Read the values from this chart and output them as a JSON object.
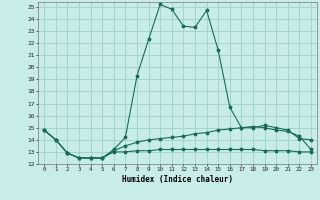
{
  "xlabel": "Humidex (Indice chaleur)",
  "background_color": "#c8ecea",
  "grid_color": "#a0d0cc",
  "line_color": "#1a6b5a",
  "xlim": [
    -0.5,
    23.5
  ],
  "ylim": [
    12,
    25.4
  ],
  "xticks": [
    0,
    1,
    2,
    3,
    4,
    5,
    6,
    7,
    8,
    9,
    10,
    11,
    12,
    13,
    14,
    15,
    16,
    17,
    18,
    19,
    20,
    21,
    22,
    23
  ],
  "yticks": [
    12,
    13,
    14,
    15,
    16,
    17,
    18,
    19,
    20,
    21,
    22,
    23,
    24,
    25
  ],
  "curve1_x": [
    0,
    1,
    2,
    3,
    4,
    5,
    6,
    7,
    8,
    9,
    10,
    11,
    12,
    13,
    14,
    15,
    16,
    17,
    18,
    19,
    20,
    21,
    22,
    23
  ],
  "curve1_y": [
    14.8,
    14.0,
    12.9,
    12.5,
    12.5,
    12.5,
    13.2,
    14.2,
    19.3,
    22.3,
    25.2,
    24.8,
    23.4,
    23.3,
    24.7,
    21.4,
    16.7,
    15.0,
    15.0,
    15.2,
    15.0,
    14.8,
    14.1,
    14.0
  ],
  "curve2_x": [
    0,
    1,
    2,
    3,
    4,
    5,
    6,
    7,
    8,
    9,
    10,
    11,
    12,
    13,
    14,
    15,
    16,
    17,
    18,
    19,
    20,
    21,
    22,
    23
  ],
  "curve2_y": [
    14.8,
    14.0,
    12.9,
    12.5,
    12.5,
    12.5,
    13.1,
    13.5,
    13.8,
    14.0,
    14.1,
    14.2,
    14.3,
    14.5,
    14.6,
    14.8,
    14.9,
    15.0,
    15.1,
    15.0,
    14.8,
    14.7,
    14.3,
    13.2
  ],
  "curve3_x": [
    0,
    1,
    2,
    3,
    4,
    5,
    6,
    7,
    8,
    9,
    10,
    11,
    12,
    13,
    14,
    15,
    16,
    17,
    18,
    19,
    20,
    21,
    22,
    23
  ],
  "curve3_y": [
    14.8,
    14.0,
    12.9,
    12.5,
    12.5,
    12.5,
    13.0,
    13.0,
    13.1,
    13.1,
    13.2,
    13.2,
    13.2,
    13.2,
    13.2,
    13.2,
    13.2,
    13.2,
    13.2,
    13.1,
    13.1,
    13.1,
    13.0,
    13.0
  ]
}
